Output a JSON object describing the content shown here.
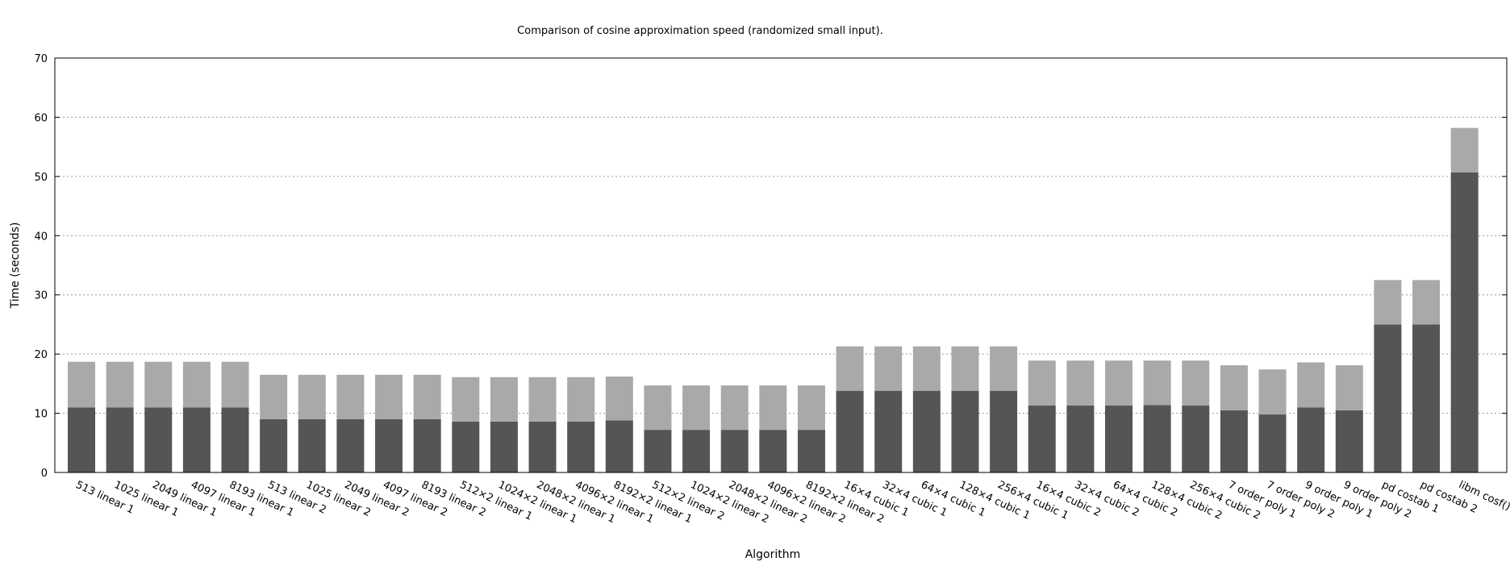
{
  "chart_data": {
    "type": "bar",
    "title": "Comparison of cosine approximation speed (randomized small input).",
    "xlabel": "Algorithm",
    "ylabel": "Time (seconds)",
    "ylim": [
      0,
      70
    ],
    "yticks": [
      0,
      10,
      20,
      30,
      40,
      50,
      60,
      70
    ],
    "grid": true,
    "stacked": true,
    "categories": [
      "513 linear 1",
      "1025 linear 1",
      "2049 linear 1",
      "4097 linear 1",
      "8193 linear 1",
      "513 linear 2",
      "1025 linear 2",
      "2049 linear 2",
      "4097 linear 2",
      "8193 linear 2",
      "512×2 linear 1",
      "1024×2 linear 1",
      "2048×2 linear 1",
      "4096×2 linear 1",
      "8192×2 linear 1",
      "512×2 linear 2",
      "1024×2 linear 2",
      "2048×2 linear 2",
      "4096×2 linear 2",
      "8192×2 linear 2",
      "16×4 cubic 1",
      "32×4 cubic 1",
      "64×4 cubic 1",
      "128×4 cubic 1",
      "256×4 cubic 1",
      "16×4 cubic 2",
      "32×4 cubic 2",
      "64×4 cubic 2",
      "128×4 cubic 2",
      "256×4 cubic 2",
      "7 order poly 1",
      "7 order poly 2",
      "9 order poly 1",
      "9 order poly 2",
      "pd costab 1",
      "pd costab 2",
      "libm cosf()"
    ],
    "series": [
      {
        "color": "#555555",
        "values": [
          11.0,
          11.0,
          11.0,
          11.0,
          11.0,
          9.0,
          9.0,
          9.0,
          9.0,
          9.0,
          8.6,
          8.6,
          8.6,
          8.6,
          8.8,
          7.2,
          7.2,
          7.2,
          7.2,
          7.2,
          13.8,
          13.8,
          13.8,
          13.8,
          13.8,
          11.3,
          11.3,
          11.3,
          11.4,
          11.3,
          10.5,
          9.8,
          11.0,
          10.5,
          25.0,
          25.0,
          50.7
        ]
      },
      {
        "color": "#a9a9a9",
        "values": [
          7.7,
          7.7,
          7.7,
          7.7,
          7.7,
          7.5,
          7.5,
          7.5,
          7.5,
          7.5,
          7.5,
          7.5,
          7.5,
          7.5,
          7.4,
          7.5,
          7.5,
          7.5,
          7.5,
          7.5,
          7.5,
          7.5,
          7.5,
          7.5,
          7.5,
          7.6,
          7.6,
          7.6,
          7.5,
          7.6,
          7.6,
          7.6,
          7.6,
          7.6,
          7.5,
          7.5,
          7.5
        ]
      }
    ]
  }
}
